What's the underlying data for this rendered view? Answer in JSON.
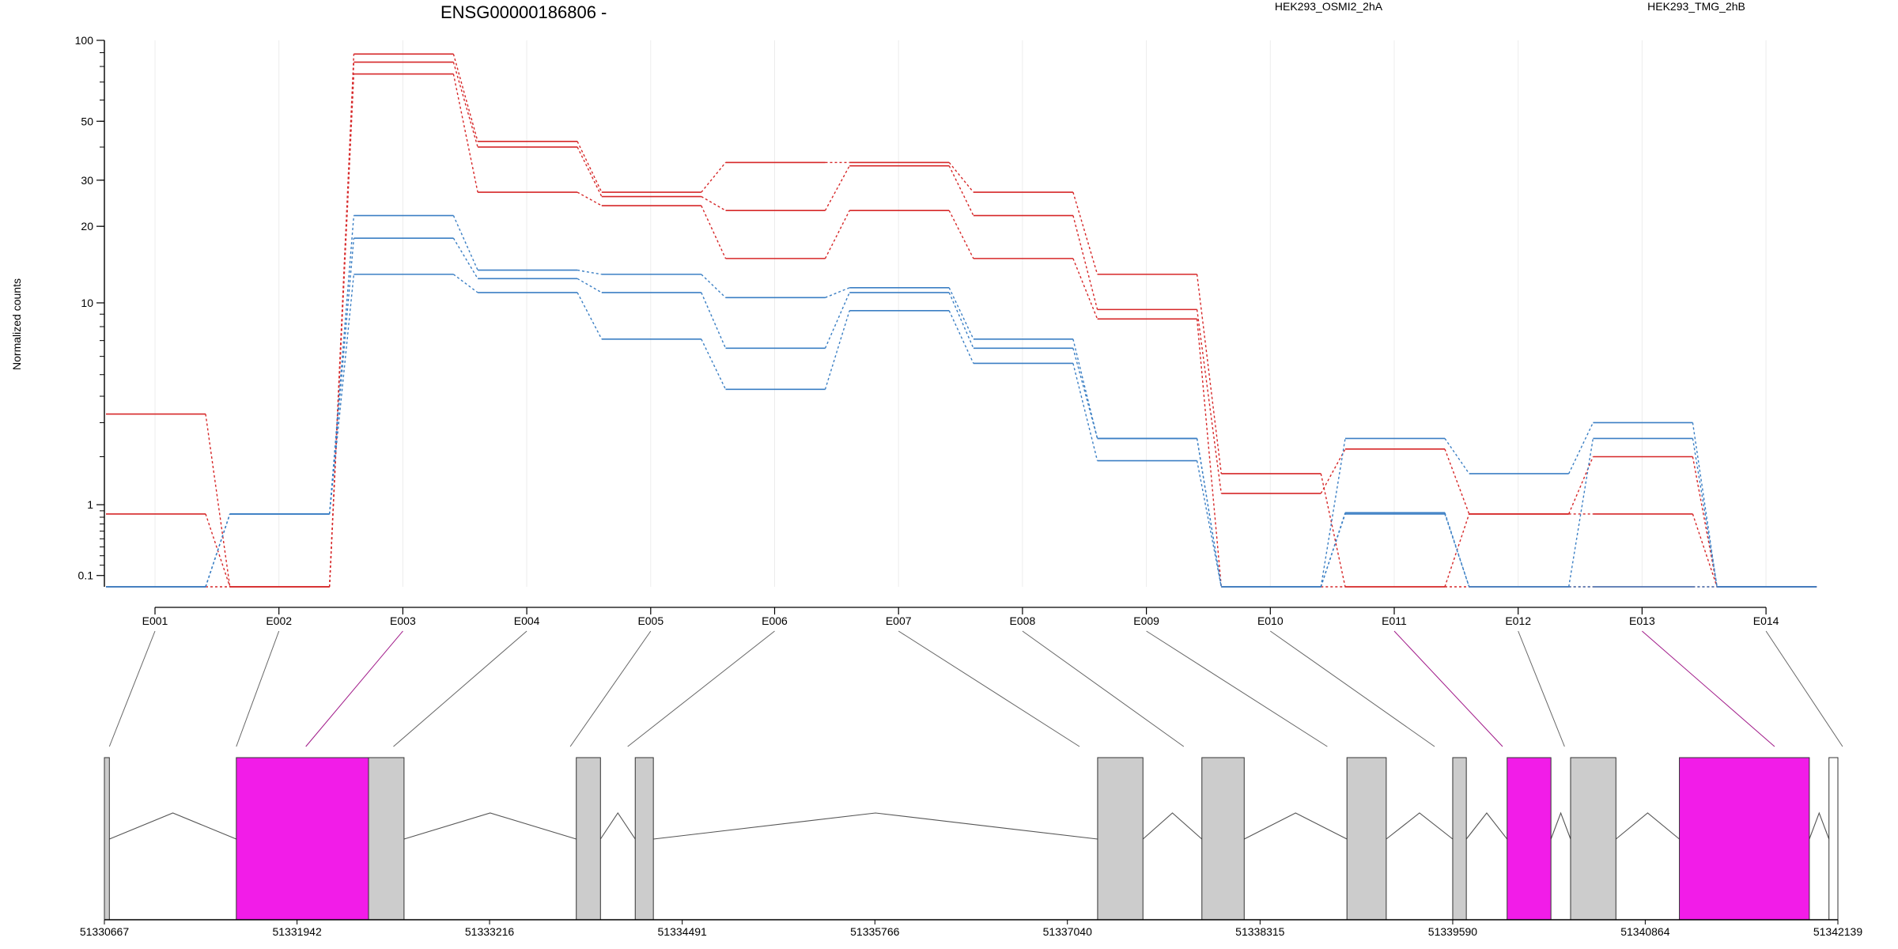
{
  "chart_data": {
    "type": "line",
    "title": "ENSG00000186806 -",
    "ylabel": "Normalized counts",
    "yscale": "log1p",
    "ylim": [
      0,
      100
    ],
    "yticks": [
      "100",
      "50",
      "30",
      "20",
      "10",
      "1",
      "0.1"
    ],
    "categories": [
      "E001",
      "E002",
      "E003",
      "E004",
      "E005",
      "E006",
      "E007",
      "E008",
      "E009",
      "E010",
      "E011",
      "E012",
      "E013",
      "E014"
    ],
    "groups": [
      {
        "label": "HEK293_OSMI2_2hA",
        "color": "#d62728"
      },
      {
        "label": "HEK293_TMG_2hB",
        "color": "#3b7fc4"
      }
    ],
    "series": [
      {
        "group": 0,
        "values": [
          3.3,
          0,
          89,
          42,
          27,
          35,
          35,
          27,
          13,
          1.6,
          0,
          0.85,
          2.0,
          0
        ]
      },
      {
        "group": 0,
        "values": [
          0.85,
          0,
          83,
          40,
          26,
          23,
          34,
          22,
          9.4,
          1.2,
          2.2,
          0.85,
          0.85,
          0
        ]
      },
      {
        "group": 0,
        "values": [
          0,
          0,
          75,
          27,
          24,
          15,
          23,
          15,
          8.6,
          0,
          0,
          0,
          0,
          0
        ]
      },
      {
        "group": 1,
        "values": [
          0,
          0.85,
          22,
          13.5,
          13,
          10.5,
          11.5,
          7.1,
          2.5,
          0,
          2.5,
          1.6,
          3.0,
          0
        ]
      },
      {
        "group": 1,
        "values": [
          0,
          0.85,
          18,
          12.5,
          11,
          6.5,
          11,
          6.5,
          2.5,
          0,
          0.87,
          0,
          2.5,
          0
        ]
      },
      {
        "group": 1,
        "values": [
          0,
          0.85,
          13,
          11,
          7.1,
          4.3,
          9.3,
          5.6,
          1.9,
          0,
          0.85,
          0,
          0,
          0
        ]
      }
    ],
    "genomic_ticks": [
      "51330667",
      "51331942",
      "51333216",
      "51334491",
      "51335766",
      "51337040",
      "51338315",
      "51339590",
      "51340864",
      "51342139"
    ],
    "gene_model": {
      "start": 51330667,
      "end": 51342139,
      "default_fill": "#cccccc",
      "highlight_fill": "#f21ce8",
      "exons": [
        {
          "id": "E001",
          "start": 51330667,
          "end": 51330700,
          "highlight": false
        },
        {
          "id": "E002",
          "start": 51331540,
          "end": 51332415,
          "highlight": true
        },
        {
          "id": "E003",
          "start": 51332415,
          "end": 51332650,
          "highlight": false
        },
        {
          "id": "E004",
          "start": 51333790,
          "end": 51333950,
          "highlight": false
        },
        {
          "id": "E005",
          "start": 51334180,
          "end": 51334300,
          "highlight": false
        },
        {
          "id": "E006",
          "start": 51337240,
          "end": 51337540,
          "highlight": false
        },
        {
          "id": "E007",
          "start": 51337930,
          "end": 51338210,
          "highlight": false
        },
        {
          "id": "E008",
          "start": 51338890,
          "end": 51339150,
          "highlight": false
        },
        {
          "id": "E009",
          "start": 51339590,
          "end": 51339680,
          "highlight": false
        },
        {
          "id": "E010",
          "start": 51339950,
          "end": 51340240,
          "highlight": true
        },
        {
          "id": "E011",
          "start": 51340370,
          "end": 51340670,
          "highlight": false
        },
        {
          "id": "E012",
          "start": 51341090,
          "end": 51341950,
          "highlight": true
        },
        {
          "id": "E013",
          "start": 51342080,
          "end": 51342139,
          "highlight": false,
          "open": true
        }
      ],
      "connectors": [
        {
          "label": "E001",
          "target": 51330700,
          "highlight": false
        },
        {
          "label": "E002",
          "target": 51331540,
          "highlight": false
        },
        {
          "label": "E003",
          "target": 51332000,
          "highlight": true
        },
        {
          "label": "E004",
          "target": 51332580,
          "highlight": false
        },
        {
          "label": "E005",
          "target": 51333750,
          "highlight": false
        },
        {
          "label": "E006",
          "target": 51334130,
          "highlight": false
        },
        {
          "label": "E007",
          "target": 51337120,
          "highlight": false
        },
        {
          "label": "E008",
          "target": 51337810,
          "highlight": false
        },
        {
          "label": "E009",
          "target": 51338760,
          "highlight": false
        },
        {
          "label": "E010",
          "target": 51339470,
          "highlight": false
        },
        {
          "label": "E011",
          "target": 51339920,
          "highlight": true
        },
        {
          "label": "E012",
          "target": 51340330,
          "highlight": false
        },
        {
          "label": "E013",
          "target": 51341720,
          "highlight": true
        },
        {
          "label": "E014",
          "target": 51342170,
          "highlight": false
        }
      ]
    }
  }
}
